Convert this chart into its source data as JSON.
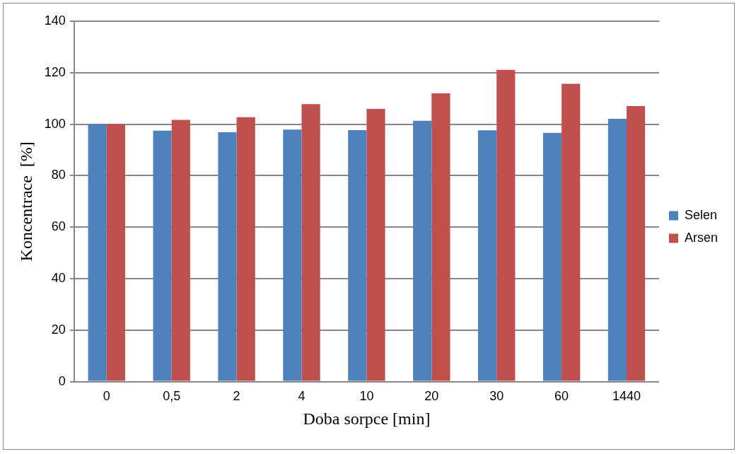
{
  "chart_data": {
    "type": "bar",
    "xlabel": "Doba sorpce [min]",
    "ylabel": "Koncentrace  [%]",
    "categories": [
      "0",
      "0,5",
      "2",
      "4",
      "10",
      "20",
      "30",
      "60",
      "1440"
    ],
    "series": [
      {
        "name": "Selen",
        "color": "#4f81bd",
        "values": [
          100,
          97.5,
          96.9,
          97.9,
          97.7,
          101.3,
          97.6,
          96.6,
          102.1
        ]
      },
      {
        "name": "Arsen",
        "color": "#c0504d",
        "values": [
          100,
          101.7,
          102.7,
          107.8,
          105.9,
          112,
          121.1,
          115.7,
          107
        ]
      }
    ],
    "ylim": [
      0,
      140
    ],
    "yticks": [
      0,
      20,
      40,
      60,
      80,
      100,
      120,
      140
    ],
    "grid": "y",
    "legend": "right"
  }
}
